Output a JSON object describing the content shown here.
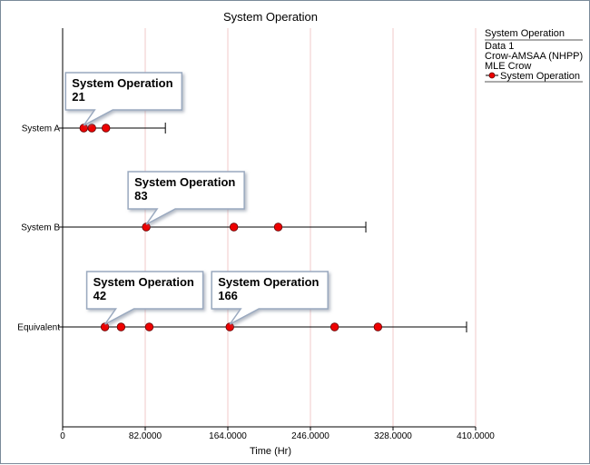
{
  "chart_data": {
    "type": "scatter",
    "title": "System Operation",
    "xlabel": "Time (Hr)",
    "xlim": [
      0,
      410
    ],
    "x_ticks": [
      "0",
      "82.0000",
      "164.0000",
      "246.0000",
      "328.0000",
      "410.0000"
    ],
    "x_tick_values": [
      0,
      82,
      164,
      246,
      328,
      410
    ],
    "grid_x": true,
    "grid_color": "#f0c8c8",
    "categories": [
      "System A",
      "System B",
      "Equivalent"
    ],
    "series": [
      {
        "category": "System A",
        "events": [
          21,
          29,
          43
        ],
        "end": 102
      },
      {
        "category": "System B",
        "events": [
          83,
          170,
          214
        ],
        "end": 301
      },
      {
        "category": "Equivalent",
        "events": [
          42,
          58,
          86,
          166,
          270,
          313
        ],
        "end": 401
      }
    ],
    "annotations": [
      {
        "category": "System A",
        "x": 21,
        "label": "System Operation",
        "value": "21"
      },
      {
        "category": "System B",
        "x": 83,
        "label": "System Operation",
        "value": "83"
      },
      {
        "category": "Equivalent",
        "x": 42,
        "label": "System Operation",
        "value": "42"
      },
      {
        "category": "Equivalent",
        "x": 166,
        "label": "System Operation",
        "value": "166"
      }
    ],
    "marker_color": "#ee0000",
    "legend": {
      "placement": "top-right",
      "title": "System Operation",
      "lines": [
        "Data 1",
        "Crow-AMSAA (NHPP)",
        "MLE Crow"
      ],
      "series_label": "System Operation"
    }
  }
}
